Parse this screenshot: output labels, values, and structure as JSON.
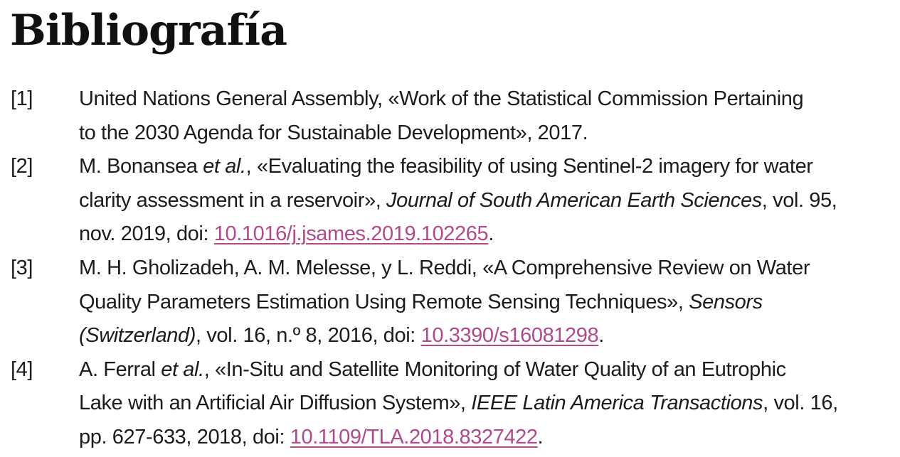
{
  "heading": "Bibliografía",
  "references": [
    {
      "label": "[1]",
      "line1": "United Nations General Assembly, «Work of the Statistical Commission Pertaining",
      "line2": "to the 2030 Agenda for Sustainable Development», 2017."
    },
    {
      "label": "[2]",
      "l1_a": "M. Bonansea ",
      "l1_em": "et al.",
      "l1_b": ", «Evaluating the feasibility of using Sentinel-2 imagery for water",
      "l2_a": "clarity assessment in a reservoir», ",
      "l2_em": "Journal of South American Earth Sciences",
      "l2_b": ", vol. 95,",
      "l3_a": "nov. 2019, doi: ",
      "doi": "10.1016/j.jsames.2019.102265",
      "l3_b": "."
    },
    {
      "label": "[3]",
      "line1": "M. H. Gholizadeh, A. M. Melesse, y L. Reddi, «A Comprehensive Review on Water",
      "l2_a": "Quality Parameters Estimation Using Remote Sensing Techniques», ",
      "l2_em": "Sensors",
      "l3_em": "(Switzerland)",
      "l3_a": ", vol. 16, n.º 8, 2016, doi: ",
      "doi": "10.3390/s16081298",
      "l3_b": "."
    },
    {
      "label": "[4]",
      "l1_a": "A. Ferral ",
      "l1_em": "et al.",
      "l1_b": ", «In-Situ and Satellite Monitoring of Water Quality of an Eutrophic",
      "l2_a": "Lake with an Artificial Air Diffusion System», ",
      "l2_em": "IEEE Latin America Transactions",
      "l2_b": ", vol. 16,",
      "l3_a": "pp. 627-633, 2018, doi: ",
      "doi": "10.1109/TLA.2018.8327422",
      "l3_b": "."
    }
  ],
  "colors": {
    "text": "#1c1c1c",
    "link": "#b04a8a",
    "background": "#ffffff"
  }
}
